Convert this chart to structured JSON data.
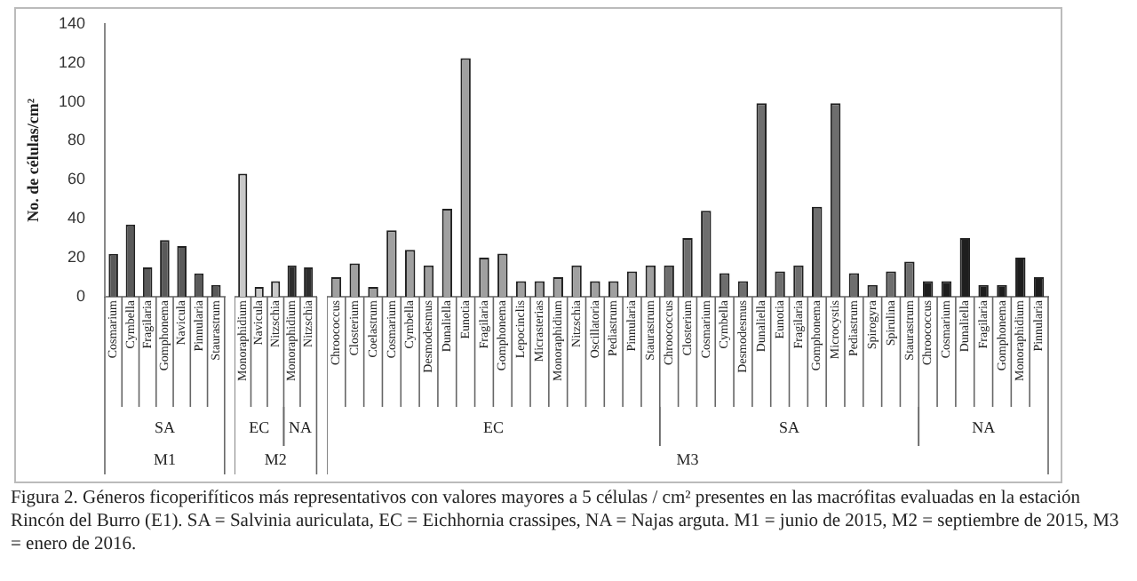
{
  "chart_data": [
    {
      "type": "bar",
      "ylabel": "No. de células/cm²",
      "xlabel": "M1",
      "categories": [
        "Cosmarium",
        "Cymbella",
        "Fragilaria",
        "Gomphonema",
        "Navicula",
        "Pinnularia",
        "Staurastrum"
      ],
      "series": [
        {
          "name": "SA",
          "color": "#5a5a5a",
          "values": [
            22,
            37,
            15,
            29,
            26,
            12,
            6
          ]
        }
      ],
      "ylim": [
        0,
        140
      ],
      "yticks": [
        0,
        20,
        40,
        60,
        80,
        100,
        120,
        140
      ],
      "grid": false,
      "legend": false
    },
    {
      "type": "bar",
      "xlabel": "M2",
      "categories": [
        "Monoraphidium",
        "Navicula",
        "Nitzschia",
        "Monoraphidium",
        "Nitzschia"
      ],
      "series": [
        {
          "name": "EC",
          "color": "#c8c8c8",
          "values": [
            63,
            5,
            8,
            null,
            null
          ]
        },
        {
          "name": "NA",
          "color": "#2e2e2e",
          "values": [
            null,
            null,
            null,
            16,
            15
          ]
        }
      ],
      "ylim": [
        0,
        140
      ],
      "yticks": [
        0,
        20,
        40,
        60,
        80,
        100,
        120,
        140
      ],
      "tick_labels": "x",
      "grid": false,
      "legend": false
    },
    {
      "type": "bar",
      "xlabel": "M3",
      "categories": [
        "Chroococcus",
        "Closterium",
        "Coelastrum",
        "Cosmarium",
        "Cymbella",
        "Desmodesmus",
        "Dunaliella",
        "Eunotia",
        "Fragilaria",
        "Gomphonema",
        "Lepocinclis",
        "Micrasterias",
        "Monoraphidium",
        "Nitzschia",
        "Oscillatoria",
        "Pediastrum",
        "Pinnularia",
        "Staurastrum",
        "Chroococcus",
        "Closterium",
        "Cosmarium",
        "Cymbella",
        "Desmodesmus",
        "Dunaliella",
        "Eunotia",
        "Fragilaria",
        "Gomphonema",
        "Microcystis",
        "Pediastrum",
        "Spirogyra",
        "Spirulina",
        "Staurastrum",
        "Chroococcus",
        "Cosmarium",
        "Dunaliella",
        "Fragilaria",
        "Gomphonema",
        "Monoraphidium",
        "Pinnularia"
      ],
      "series": [
        {
          "name": "EC",
          "color": "#a0a0a0",
          "values": [
            10,
            17,
            5,
            34,
            24,
            16,
            45,
            122,
            20,
            22,
            8,
            8,
            10,
            16,
            8,
            8,
            13,
            16,
            null,
            null,
            null,
            null,
            null,
            null,
            null,
            null,
            null,
            null,
            null,
            null,
            null,
            null,
            null,
            null,
            null,
            null,
            null,
            null,
            null
          ]
        },
        {
          "name": "SA",
          "color": "#6e6e6e",
          "values": [
            null,
            null,
            null,
            null,
            null,
            null,
            null,
            null,
            null,
            null,
            null,
            null,
            null,
            null,
            null,
            null,
            null,
            null,
            16,
            30,
            44,
            12,
            8,
            99,
            13,
            16,
            46,
            99,
            12,
            6,
            13,
            18,
            null,
            null,
            null,
            null,
            null,
            null,
            null
          ]
        },
        {
          "name": "NA",
          "color": "#1e1e1e",
          "values": [
            null,
            null,
            null,
            null,
            null,
            null,
            null,
            null,
            null,
            null,
            null,
            null,
            null,
            null,
            null,
            null,
            null,
            null,
            null,
            null,
            null,
            null,
            null,
            null,
            null,
            null,
            null,
            null,
            null,
            null,
            null,
            null,
            8,
            8,
            30,
            6,
            6,
            20,
            10
          ]
        }
      ],
      "ylim": [
        0,
        140
      ],
      "yticks": [
        0,
        20,
        40,
        60,
        80,
        100,
        120,
        140
      ],
      "tick_labels": "x",
      "grid": false,
      "legend": false,
      "annotations": [
        "Figura 2. Géneros ficoperifíticos más representativos con valores mayores a 5 células / cm² presentes en las macrófitas evaluadas en la estación Rincón del Burro (E1). SA = Salvinia auriculata, EC = Eichhornia crassipes, NA = Najas arguta. M1 = junio de 2015, M2 = septiembre de 2015, M3 = enero de 2016."
      ]
    }
  ]
}
